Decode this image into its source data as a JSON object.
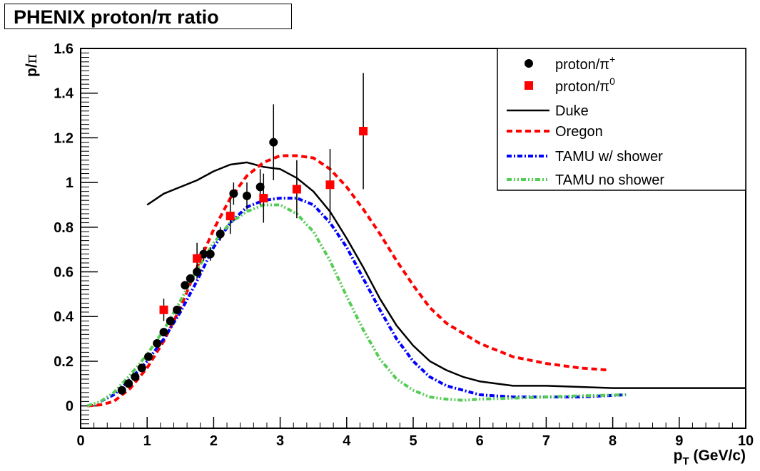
{
  "chart_data": {
    "type": "scatter",
    "title": "PHENIX proton/π ratio",
    "ylabel_base": "p/",
    "ylabel_sym": "π",
    "xlabel_base": "p",
    "xlabel_sub": "T",
    "xlabel_unit": " (GeV/c)",
    "xlim": [
      0,
      10
    ],
    "ylim": [
      -0.1,
      1.6
    ],
    "x_ticks": [
      0,
      1,
      2,
      3,
      4,
      5,
      6,
      7,
      8,
      9,
      10
    ],
    "x_tick_labels": [
      "0",
      "1",
      "2",
      "3",
      "4",
      "5",
      "6",
      "7",
      "8",
      "9",
      "10"
    ],
    "y_ticks": [
      0,
      0.2,
      0.4,
      0.6,
      0.8,
      1.0,
      1.2,
      1.4,
      1.6
    ],
    "y_tick_labels": [
      "0",
      "0.2",
      "0.4",
      "0.6",
      "0.8",
      "1",
      "1.2",
      "1.4",
      "1.6"
    ],
    "grid": false,
    "legend_position": "top-right",
    "point_series": [
      {
        "name": "proton/π+",
        "label_base": "proton/π",
        "label_sup": "+",
        "marker": "circle",
        "color": "#000000",
        "points": [
          {
            "x": 0.62,
            "y": 0.07,
            "err": 0
          },
          {
            "x": 0.72,
            "y": 0.1,
            "err": 0
          },
          {
            "x": 0.82,
            "y": 0.13,
            "err": 0
          },
          {
            "x": 0.92,
            "y": 0.17,
            "err": 0
          },
          {
            "x": 1.02,
            "y": 0.22,
            "err": 0
          },
          {
            "x": 1.15,
            "y": 0.28,
            "err": 0
          },
          {
            "x": 1.25,
            "y": 0.33,
            "err": 0
          },
          {
            "x": 1.35,
            "y": 0.38,
            "err": 0
          },
          {
            "x": 1.45,
            "y": 0.43,
            "err": 0
          },
          {
            "x": 1.57,
            "y": 0.54,
            "err": 0
          },
          {
            "x": 1.65,
            "y": 0.57,
            "err": 0
          },
          {
            "x": 1.75,
            "y": 0.6,
            "err": 0.03
          },
          {
            "x": 1.85,
            "y": 0.68,
            "err": 0.03
          },
          {
            "x": 1.95,
            "y": 0.68,
            "err": 0.03
          },
          {
            "x": 2.1,
            "y": 0.77,
            "err": 0.03
          },
          {
            "x": 2.3,
            "y": 0.95,
            "err": 0.05
          },
          {
            "x": 2.5,
            "y": 0.94,
            "err": 0.06
          },
          {
            "x": 2.7,
            "y": 0.98,
            "err": 0.08
          },
          {
            "x": 2.9,
            "y": 1.18,
            "err": 0.17
          }
        ]
      },
      {
        "name": "proton/π0",
        "label_base": "proton/π",
        "label_sup": "0",
        "marker": "square",
        "color": "#ff0000",
        "points": [
          {
            "x": 1.25,
            "y": 0.43,
            "err": 0.05
          },
          {
            "x": 1.75,
            "y": 0.66,
            "err": 0.07
          },
          {
            "x": 2.25,
            "y": 0.85,
            "err": 0.08
          },
          {
            "x": 2.75,
            "y": 0.93,
            "err": 0.11
          },
          {
            "x": 3.25,
            "y": 0.97,
            "err": 0.13
          },
          {
            "x": 3.75,
            "y": 0.99,
            "err": 0.16
          },
          {
            "x": 4.25,
            "y": 1.23,
            "err": 0.26
          }
        ]
      }
    ],
    "line_series": [
      {
        "name": "Duke",
        "color": "#000000",
        "dash": "",
        "x": [
          1.0,
          1.25,
          1.5,
          1.75,
          2.0,
          2.25,
          2.5,
          2.75,
          3.0,
          3.25,
          3.5,
          3.75,
          4.0,
          4.25,
          4.5,
          4.75,
          5.0,
          5.25,
          5.5,
          5.75,
          6.0,
          6.5,
          7.0,
          8.0,
          9.0,
          10.0
        ],
        "y": [
          0.9,
          0.95,
          0.98,
          1.01,
          1.05,
          1.08,
          1.09,
          1.07,
          1.06,
          1.02,
          0.96,
          0.87,
          0.75,
          0.62,
          0.48,
          0.36,
          0.27,
          0.2,
          0.16,
          0.13,
          0.11,
          0.09,
          0.09,
          0.08,
          0.08,
          0.08
        ]
      },
      {
        "name": "Oregon",
        "color": "#ff0000",
        "dash": "8,5",
        "x": [
          0.1,
          0.3,
          0.5,
          0.75,
          1.0,
          1.25,
          1.5,
          1.75,
          2.0,
          2.25,
          2.5,
          2.75,
          3.0,
          3.25,
          3.5,
          3.75,
          4.0,
          4.25,
          4.5,
          4.75,
          5.0,
          5.25,
          5.5,
          6.0,
          6.5,
          7.0,
          7.5,
          7.95
        ],
        "y": [
          0.0,
          0.005,
          0.02,
          0.08,
          0.17,
          0.29,
          0.44,
          0.62,
          0.79,
          0.93,
          1.03,
          1.09,
          1.12,
          1.12,
          1.11,
          1.06,
          0.98,
          0.88,
          0.77,
          0.65,
          0.54,
          0.44,
          0.37,
          0.28,
          0.22,
          0.19,
          0.17,
          0.16
        ]
      },
      {
        "name": "TAMU w/ shower",
        "color": "#0000ff",
        "dash": "7,3,2,3",
        "x": [
          0.3,
          0.5,
          0.75,
          1.0,
          1.25,
          1.5,
          1.75,
          2.0,
          2.25,
          2.5,
          2.75,
          3.0,
          3.25,
          3.5,
          3.75,
          4.0,
          4.25,
          4.5,
          4.75,
          5.0,
          5.25,
          5.5,
          5.75,
          6.0,
          6.5,
          7.0,
          7.5,
          8.2
        ],
        "y": [
          0.02,
          0.05,
          0.12,
          0.2,
          0.3,
          0.42,
          0.56,
          0.71,
          0.82,
          0.89,
          0.92,
          0.93,
          0.93,
          0.9,
          0.82,
          0.71,
          0.57,
          0.43,
          0.3,
          0.2,
          0.13,
          0.09,
          0.07,
          0.05,
          0.04,
          0.04,
          0.04,
          0.05
        ]
      },
      {
        "name": "TAMU no shower",
        "color": "#55cc55",
        "dash": "7,3,2,3,2,3",
        "x": [
          0.1,
          0.3,
          0.5,
          0.75,
          1.0,
          1.25,
          1.5,
          1.75,
          2.0,
          2.25,
          2.5,
          2.75,
          3.0,
          3.25,
          3.5,
          3.75,
          4.0,
          4.25,
          4.5,
          4.75,
          5.0,
          5.25,
          5.5,
          5.75,
          6.0,
          6.5,
          7.0,
          7.5,
          8.2
        ],
        "y": [
          0.0,
          0.02,
          0.06,
          0.14,
          0.23,
          0.34,
          0.47,
          0.61,
          0.73,
          0.82,
          0.87,
          0.9,
          0.9,
          0.86,
          0.78,
          0.65,
          0.49,
          0.34,
          0.21,
          0.12,
          0.07,
          0.04,
          0.03,
          0.025,
          0.03,
          0.035,
          0.04,
          0.045,
          0.05
        ]
      }
    ]
  }
}
